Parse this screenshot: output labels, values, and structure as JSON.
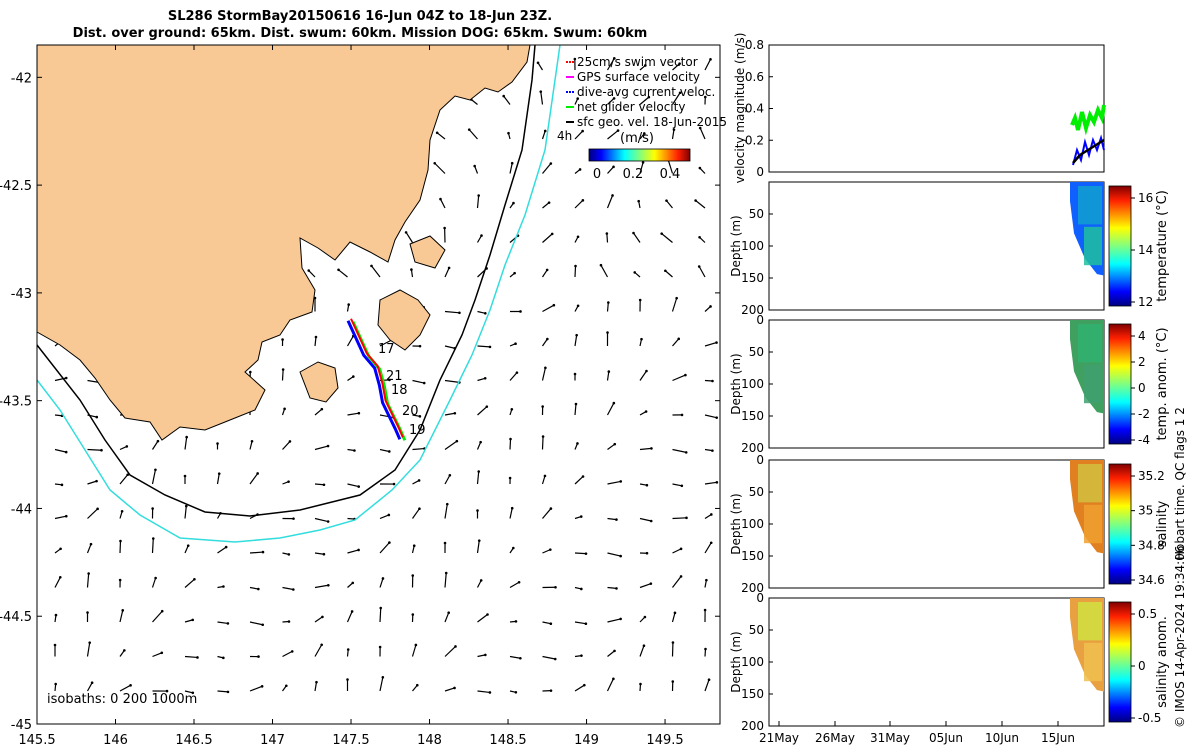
{
  "title_lines": [
    "SL286 StormBay20150616 16-Jun 04Z to 18-Jun 23Z.",
    "Dist. over ground: 65km. Dist. swum: 60km. Mission DOG: 65km. Swum: 60km"
  ],
  "map": {
    "x_ticks": [
      "145.5",
      "146",
      "146.5",
      "147",
      "147.5",
      "148",
      "148.5",
      "149",
      "149.5"
    ],
    "y_ticks": [
      "-42",
      "-42.5",
      "-43",
      "-43.5",
      "-44",
      "-44.5",
      "-45"
    ],
    "legend": [
      {
        "label": "25cm/s swim vector",
        "color": "#ff0000"
      },
      {
        "label": "GPS surface velocity",
        "color": "#ff00ff"
      },
      {
        "label": "dive-avg current veloc.",
        "color": "#0000ff"
      },
      {
        "label": "net glider velocity",
        "color": "#00ee00"
      },
      {
        "label": "sfc geo. vel. 18-Jun-2015",
        "color": "#000000"
      }
    ],
    "scale_label": "4h",
    "colorbar_label": "(m/s)",
    "colorbar_ticks": [
      "0",
      "0.2",
      "0.4"
    ],
    "isobath_text": "isobaths: 0   200  1000m",
    "day_labels": [
      "17",
      "21",
      "18",
      "20",
      "19"
    ],
    "land_color": "#f9c995",
    "isobath_200_color": "#000000",
    "isobath_1000_color": "#33dddd"
  },
  "chart_data": [
    {
      "type": "line",
      "name": "glider track",
      "xlabel": "",
      "ylabel": "",
      "xlim": [
        145.5,
        149.85
      ],
      "ylim": [
        -45,
        -41.85
      ],
      "points": [
        [
          147.5,
          -43.12
        ],
        [
          147.55,
          -43.2
        ],
        [
          147.6,
          -43.28
        ],
        [
          147.67,
          -43.34
        ],
        [
          147.7,
          -43.42
        ],
        [
          147.72,
          -43.5
        ],
        [
          147.76,
          -43.56
        ],
        [
          147.8,
          -43.62
        ],
        [
          147.83,
          -43.67
        ]
      ]
    },
    {
      "type": "line",
      "ylabel": "velocity magnitude (m/s)",
      "ylim": [
        0,
        0.8
      ],
      "y_ticks": [
        "0",
        "0.2",
        "0.4",
        "0.6",
        "0.8"
      ]
    },
    {
      "type": "heatmap",
      "ylabel": "Depth (m)",
      "colorbar_label": "temperature (°C)",
      "y_ticks": [
        "50",
        "100",
        "150",
        "200"
      ],
      "colorbar_ticks": [
        "16",
        "14",
        "12"
      ]
    },
    {
      "type": "heatmap",
      "ylabel": "Depth (m)",
      "colorbar_label": "temp. anom. (°C)",
      "y_ticks": [
        "0",
        "50",
        "100",
        "150",
        "200"
      ],
      "colorbar_ticks": [
        "4",
        "2",
        "0",
        "-2",
        "-4"
      ]
    },
    {
      "type": "heatmap",
      "ylabel": "Depth (m)",
      "colorbar_label": "salinity",
      "y_ticks": [
        "0",
        "50",
        "100",
        "150",
        "200"
      ],
      "colorbar_ticks": [
        "35.2",
        "35",
        "34.8",
        "34.6"
      ]
    },
    {
      "type": "heatmap",
      "ylabel": "Depth (m)",
      "colorbar_label": "salinity anom.",
      "y_ticks": [
        "0",
        "50",
        "100",
        "150",
        "200"
      ],
      "colorbar_ticks": [
        "0.5",
        "0",
        "-0.5"
      ],
      "x_ticks": [
        "21May",
        "26May",
        "31May",
        "05Jun",
        "10Jun",
        "15Jun"
      ]
    }
  ],
  "footer": {
    "qc_text": "Hobart time. QC flags 1  2",
    "copyright": "© IMOS 14-Apr-2024 19:34:06"
  }
}
